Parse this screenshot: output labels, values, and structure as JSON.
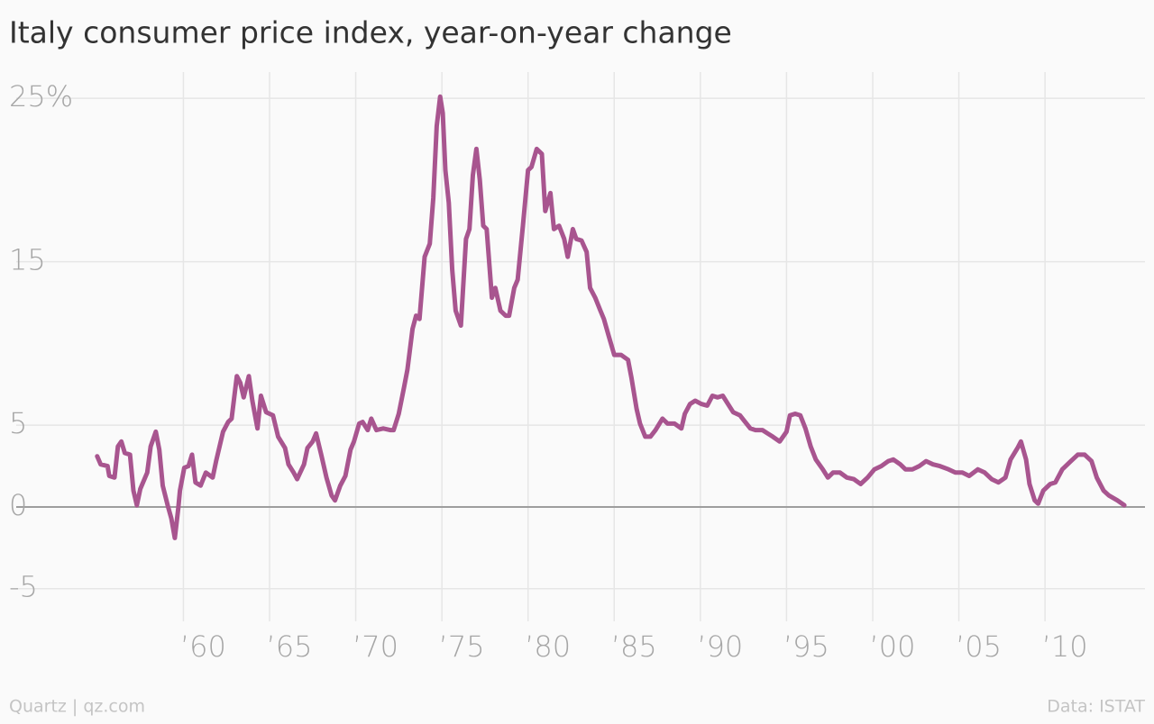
{
  "chart_data": {
    "type": "line",
    "title": "Italy consumer price index, year-on-year change",
    "source": "Data: ISTAT",
    "credit": "Quartz | qz.com",
    "xlim": [
      1950.3,
      2015.8
    ],
    "ylim": [
      -7,
      26
    ],
    "xticks": [
      {
        "value": 1960,
        "label": "’60"
      },
      {
        "value": 1965,
        "label": "’65"
      },
      {
        "value": 1970,
        "label": "’70"
      },
      {
        "value": 1975,
        "label": "’75"
      },
      {
        "value": 1980,
        "label": "’80"
      },
      {
        "value": 1985,
        "label": "’85"
      },
      {
        "value": 1990,
        "label": "’90"
      },
      {
        "value": 1995,
        "label": "’95"
      },
      {
        "value": 2000,
        "label": "’00"
      },
      {
        "value": 2005,
        "label": "’05"
      },
      {
        "value": 2010,
        "label": "’10"
      }
    ],
    "yticks": [
      {
        "value": 25,
        "label": "25%"
      },
      15,
      5,
      0,
      -5
    ],
    "grid": true,
    "series": [
      {
        "color": "#a8558f",
        "x": [
          1955.0,
          1955.2,
          1955.6,
          1955.7,
          1956.0,
          1956.2,
          1956.4,
          1956.6,
          1956.9,
          1957.1,
          1957.3,
          1957.5,
          1957.9,
          1958.1,
          1958.4,
          1958.6,
          1958.8,
          1959.1,
          1959.3,
          1959.5,
          1959.7,
          1959.8,
          1960.05,
          1960.3,
          1960.5,
          1960.7,
          1961.0,
          1961.3,
          1961.7,
          1961.9,
          1962.3,
          1962.6,
          1962.8,
          1963.1,
          1963.3,
          1963.5,
          1963.8,
          1964.0,
          1964.3,
          1964.5,
          1964.8,
          1965.2,
          1965.5,
          1965.9,
          1966.1,
          1966.4,
          1966.6,
          1967.0,
          1967.2,
          1967.5,
          1967.7,
          1968.0,
          1968.3,
          1968.6,
          1968.8,
          1969.1,
          1969.4,
          1969.7,
          1969.9,
          1970.2,
          1970.4,
          1970.7,
          1970.9,
          1971.2,
          1971.6,
          1972.0,
          1972.2,
          1972.5,
          1972.8,
          1973.0,
          1973.3,
          1973.5,
          1973.7,
          1974.0,
          1974.3,
          1974.5,
          1974.7,
          1974.9,
          1975.05,
          1975.2,
          1975.4,
          1975.6,
          1975.8,
          1976.1,
          1976.4,
          1976.6,
          1976.8,
          1977.0,
          1977.2,
          1977.4,
          1977.6,
          1977.9,
          1978.1,
          1978.4,
          1978.7,
          1978.9,
          1979.2,
          1979.4,
          1979.7,
          1980.0,
          1980.2,
          1980.5,
          1980.8,
          1981.0,
          1981.3,
          1981.5,
          1981.8,
          1982.1,
          1982.3,
          1982.6,
          1982.8,
          1983.1,
          1983.4,
          1983.6,
          1983.9,
          1984.2,
          1984.4,
          1984.7,
          1985.0,
          1985.4,
          1985.8,
          1986.0,
          1986.3,
          1986.5,
          1986.8,
          1987.1,
          1987.4,
          1987.8,
          1988.1,
          1988.5,
          1988.9,
          1989.1,
          1989.4,
          1989.7,
          1990.05,
          1990.4,
          1990.7,
          1991.0,
          1991.3,
          1991.6,
          1991.9,
          1992.3,
          1992.6,
          1992.9,
          1993.2,
          1993.6,
          1993.9,
          1994.2,
          1994.6,
          1995.0,
          1995.2,
          1995.5,
          1995.8,
          1996.1,
          1996.4,
          1996.7,
          1997.1,
          1997.4,
          1997.7,
          1998.1,
          1998.5,
          1998.9,
          1999.3,
          1999.7,
          2000.1,
          2000.5,
          2000.9,
          2001.2,
          2001.6,
          2001.9,
          2002.3,
          2002.7,
          2003.1,
          2003.5,
          2003.9,
          2004.4,
          2004.8,
          2005.2,
          2005.6,
          2006.1,
          2006.5,
          2006.9,
          2007.3,
          2007.7,
          2008.0,
          2008.4,
          2008.6,
          2008.9,
          2009.1,
          2009.4,
          2009.6,
          2009.9,
          2010.3,
          2010.6,
          2011.0,
          2011.5,
          2011.9,
          2012.3,
          2012.7,
          2013.0,
          2013.4,
          2013.7,
          2014.2,
          2014.6
        ],
        "values": [
          3.1,
          2.6,
          2.5,
          1.9,
          1.8,
          3.7,
          4.0,
          3.3,
          3.2,
          1.0,
          0.1,
          1.1,
          2.1,
          3.7,
          4.6,
          3.5,
          1.3,
          0.05,
          -0.7,
          -1.9,
          -0.1,
          1.0,
          2.4,
          2.5,
          3.2,
          1.5,
          1.3,
          2.1,
          1.8,
          2.8,
          4.6,
          5.2,
          5.4,
          8.0,
          7.6,
          6.7,
          8.0,
          6.5,
          4.8,
          6.8,
          5.8,
          5.6,
          4.3,
          3.6,
          2.6,
          2.1,
          1.7,
          2.6,
          3.6,
          4.0,
          4.5,
          3.2,
          1.8,
          0.7,
          0.4,
          1.3,
          1.9,
          3.5,
          4.0,
          5.1,
          5.2,
          4.7,
          5.4,
          4.7,
          4.8,
          4.7,
          4.7,
          5.7,
          7.3,
          8.4,
          10.9,
          11.7,
          11.5,
          15.3,
          16.1,
          18.9,
          23.3,
          25.1,
          24.1,
          20.6,
          18.6,
          14.5,
          12.0,
          11.1,
          16.4,
          17.0,
          20.3,
          21.9,
          20.0,
          17.2,
          17.0,
          12.8,
          13.4,
          12.0,
          11.7,
          11.7,
          13.4,
          13.9,
          17.2,
          20.6,
          20.8,
          21.9,
          21.6,
          18.1,
          19.2,
          17.0,
          17.2,
          16.4,
          15.3,
          17.0,
          16.4,
          16.3,
          15.6,
          13.4,
          12.8,
          12.0,
          11.5,
          10.4,
          9.3,
          9.3,
          9.0,
          7.9,
          6.0,
          5.1,
          4.3,
          4.3,
          4.7,
          5.4,
          5.1,
          5.1,
          4.8,
          5.7,
          6.3,
          6.5,
          6.3,
          6.2,
          6.8,
          6.7,
          6.8,
          6.3,
          5.8,
          5.6,
          5.2,
          4.8,
          4.7,
          4.7,
          4.5,
          4.3,
          4.0,
          4.6,
          5.6,
          5.7,
          5.6,
          4.8,
          3.7,
          2.9,
          2.3,
          1.8,
          2.1,
          2.1,
          1.8,
          1.7,
          1.4,
          1.8,
          2.3,
          2.5,
          2.8,
          2.9,
          2.6,
          2.3,
          2.3,
          2.5,
          2.8,
          2.6,
          2.5,
          2.3,
          2.1,
          2.1,
          1.9,
          2.3,
          2.1,
          1.7,
          1.5,
          1.8,
          2.9,
          3.6,
          4.0,
          2.9,
          1.4,
          0.4,
          0.2,
          1.0,
          1.4,
          1.5,
          2.3,
          2.8,
          3.2,
          3.2,
          2.8,
          1.8,
          1.0,
          0.7,
          0.4,
          0.1
        ]
      }
    ]
  }
}
